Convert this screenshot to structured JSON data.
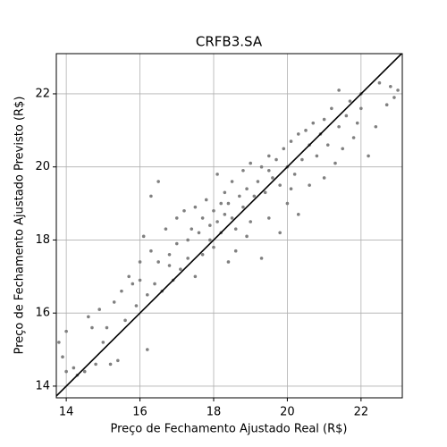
{
  "chart_data": {
    "type": "scatter",
    "title": "CRFB3.SA",
    "x_label": "Preço de Fechamento Ajustado Real (R$)",
    "y_label": "Preço de Fechamento Ajustado Previsto (R$)",
    "color": "#808080",
    "grid": true,
    "xlim": [
      13.73,
      23.12
    ],
    "ylim": [
      13.68,
      23.1
    ],
    "xticks": [
      14,
      16,
      18,
      20,
      22
    ],
    "yticks": [
      14,
      16,
      18,
      20,
      22
    ],
    "x": [
      13.8,
      13.9,
      14.0,
      14.0,
      14.2,
      14.3,
      14.5,
      14.6,
      14.7,
      14.8,
      14.9,
      15.0,
      15.1,
      15.2,
      15.3,
      15.4,
      15.5,
      15.6,
      15.7,
      15.8,
      15.9,
      16.0,
      16.0,
      16.1,
      16.2,
      16.2,
      16.3,
      16.3,
      16.4,
      16.5,
      16.5,
      16.6,
      16.7,
      16.8,
      16.9,
      17.0,
      17.0,
      17.1,
      17.2,
      17.3,
      17.4,
      17.5,
      17.5,
      17.6,
      17.7,
      17.7,
      17.8,
      17.9,
      18.0,
      18.0,
      18.1,
      18.1,
      18.2,
      18.3,
      18.3,
      18.4,
      18.4,
      18.5,
      18.5,
      18.6,
      18.7,
      18.8,
      18.8,
      18.9,
      19.0,
      19.0,
      19.1,
      19.2,
      19.3,
      19.3,
      19.4,
      19.5,
      19.5,
      19.6,
      19.7,
      19.8,
      19.8,
      19.9,
      20.0,
      20.0,
      20.1,
      20.2,
      20.3,
      20.3,
      20.4,
      20.5,
      20.6,
      20.6,
      20.7,
      20.8,
      20.9,
      21.0,
      21.0,
      21.1,
      21.2,
      21.3,
      21.4,
      21.4,
      21.5,
      21.6,
      21.7,
      21.8,
      21.9,
      22.0,
      22.0,
      22.2,
      22.4,
      22.5,
      22.7,
      22.8,
      22.9,
      23.0,
      18.6,
      18.2,
      17.9,
      19.5,
      20.1,
      16.8,
      17.3,
      18.9
    ],
    "values": [
      15.2,
      14.8,
      15.5,
      14.4,
      14.5,
      14.3,
      14.4,
      15.9,
      15.6,
      14.6,
      16.1,
      15.2,
      15.6,
      14.6,
      16.3,
      14.7,
      16.6,
      15.8,
      17.0,
      16.8,
      16.2,
      17.4,
      16.9,
      18.1,
      16.5,
      15.0,
      17.7,
      19.2,
      16.8,
      17.4,
      19.6,
      16.6,
      18.3,
      17.3,
      16.9,
      17.9,
      18.6,
      17.2,
      18.8,
      17.5,
      18.3,
      17.0,
      18.9,
      18.2,
      18.6,
      17.6,
      19.1,
      18.4,
      18.8,
      17.8,
      18.5,
      19.8,
      18.2,
      19.3,
      18.7,
      17.4,
      19.0,
      18.6,
      19.6,
      17.7,
      19.2,
      18.9,
      19.9,
      19.4,
      18.5,
      20.1,
      19.2,
      19.6,
      17.5,
      20.0,
      19.3,
      20.3,
      18.6,
      19.7,
      20.2,
      18.2,
      19.5,
      20.5,
      20.0,
      19.0,
      20.7,
      19.8,
      20.9,
      18.7,
      20.2,
      21.0,
      19.5,
      20.6,
      21.2,
      20.3,
      20.9,
      19.7,
      21.3,
      20.6,
      21.6,
      20.1,
      21.1,
      22.1,
      20.5,
      21.4,
      21.8,
      20.8,
      21.2,
      21.6,
      22.0,
      20.3,
      21.1,
      22.3,
      21.7,
      22.2,
      21.9,
      22.1,
      18.3,
      19.0,
      18.0,
      19.9,
      19.4,
      17.6,
      18.0,
      18.1
    ],
    "reference_line": {
      "x": [
        13.7,
        23.1
      ],
      "values": [
        13.7,
        23.1
      ],
      "color": "#000000"
    }
  }
}
